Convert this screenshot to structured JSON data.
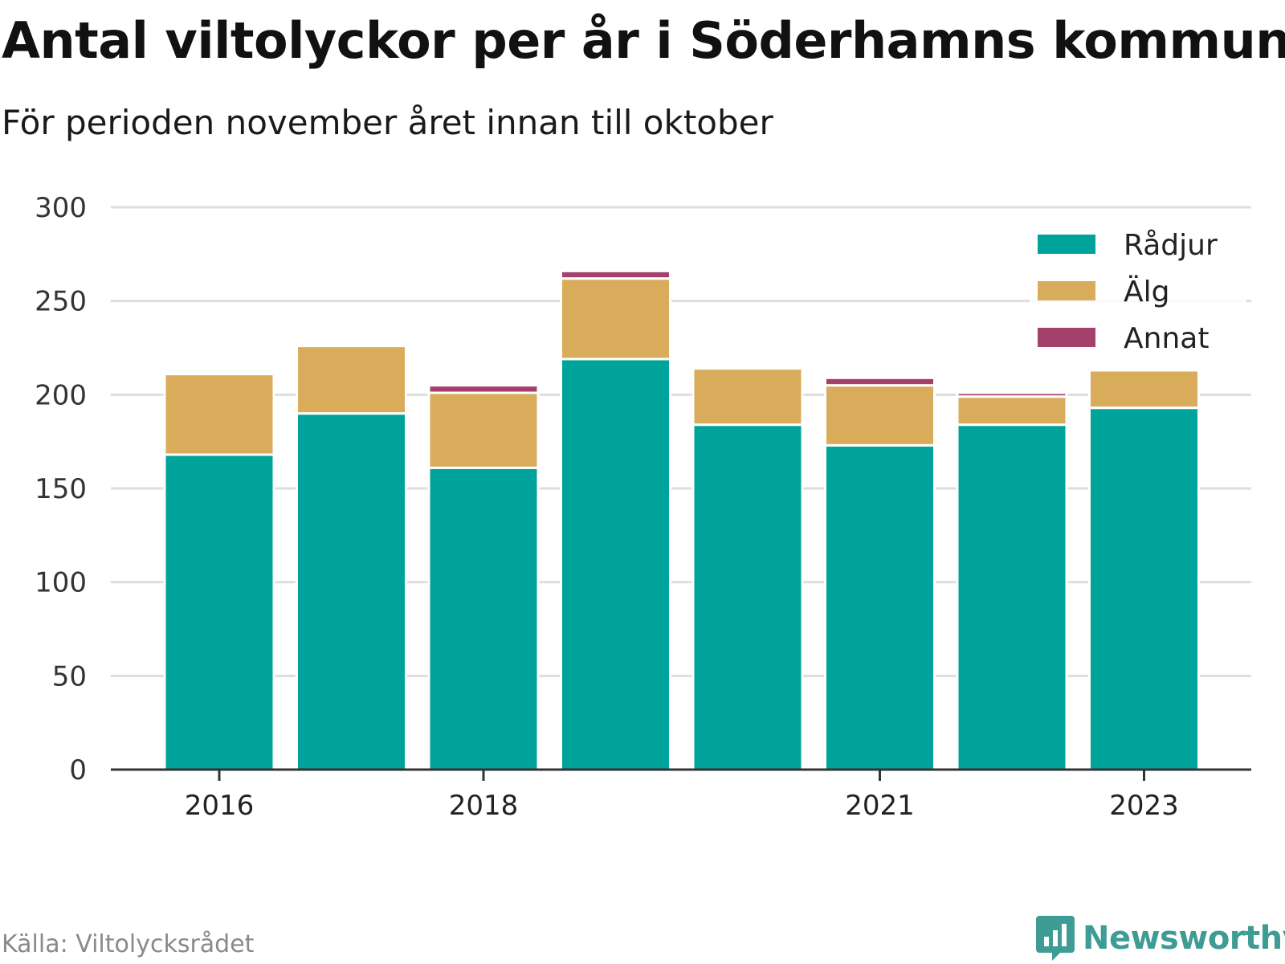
{
  "title": "Antal viltolyckor per år i Söderhamns kommun",
  "subtitle": "För perioden november året innan till oktober",
  "source": "Källa: Viltolycksrådet",
  "brand": "Newsworthy",
  "brand_icon": "newsworthy-logo-icon",
  "colors": {
    "Rådjur": "#00a39a",
    "Älg": "#d9ac5c",
    "Annat": "#a3416c",
    "grid": "#dddddd",
    "axis": "#333333"
  },
  "chart_data": {
    "type": "bar",
    "stacked": true,
    "categories": [
      "2016",
      "2017",
      "2018",
      "2019",
      "2020",
      "2021",
      "2022",
      "2023"
    ],
    "x_tick_labels": [
      "2016",
      "2018",
      "2021",
      "2023"
    ],
    "series": [
      {
        "name": "Rådjur",
        "values": [
          168,
          190,
          161,
          219,
          184,
          173,
          184,
          193
        ]
      },
      {
        "name": "Älg",
        "values": [
          43,
          36,
          40,
          43,
          30,
          32,
          15,
          20
        ]
      },
      {
        "name": "Annat",
        "values": [
          0,
          0,
          4,
          4,
          0,
          4,
          2,
          1
        ]
      }
    ],
    "ylim": [
      0,
      300
    ],
    "y_ticks": [
      "0",
      "50",
      "100",
      "150",
      "200",
      "250",
      "300"
    ],
    "grid": true,
    "legend_position": "top-right",
    "xlabel": "",
    "ylabel": ""
  }
}
